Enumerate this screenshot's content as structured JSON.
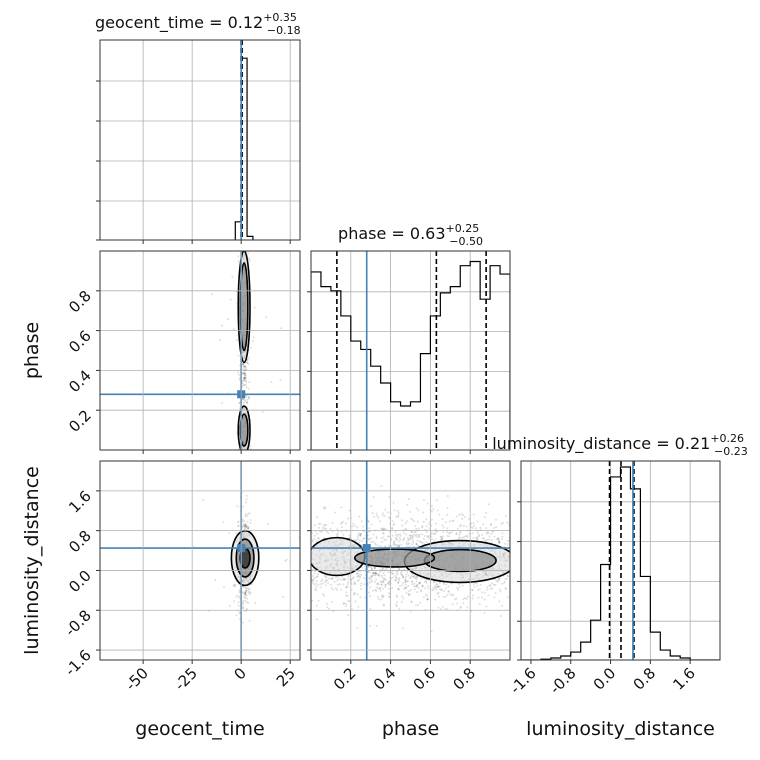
{
  "chart_data": {
    "type": "corner",
    "parameters": [
      "geocent_time",
      "phase",
      "luminosity_distance"
    ],
    "truth": {
      "geocent_time": 0.0,
      "phase": 0.28,
      "luminosity_distance": 0.45
    },
    "truth_color": "#4682b4",
    "axis_labels": {
      "geocent_time": "geocent_time",
      "phase": "phase",
      "luminosity_distance": "luminosity_distance"
    },
    "ranges": {
      "geocent_time": [
        -72,
        30
      ],
      "phase": [
        0.0,
        1.0
      ],
      "luminosity_distance": [
        -1.8,
        2.2
      ]
    },
    "ticks": {
      "geocent_time": [
        "-50",
        "-25",
        "0",
        "25"
      ],
      "phase": [
        "0.2",
        "0.4",
        "0.6",
        "0.8"
      ],
      "luminosity_distance": [
        "-1.6",
        "-0.8",
        "0.0",
        "0.8",
        "1.6"
      ]
    },
    "tick_values": {
      "geocent_time": [
        -50,
        -25,
        0,
        25
      ],
      "phase": [
        0.2,
        0.4,
        0.6,
        0.8
      ],
      "luminosity_distance": [
        -1.6,
        -0.8,
        0.0,
        0.8,
        1.6
      ]
    },
    "titles": [
      {
        "param": "geocent_time",
        "name": "geocent_time",
        "median": "0.12",
        "plus": "+0.35",
        "minus": "−0.18"
      },
      {
        "param": "phase",
        "name": "phase",
        "median": "0.63",
        "plus": "+0.25",
        "minus": "−0.50"
      },
      {
        "param": "luminosity_distance",
        "name": "luminosity_distance",
        "median": "0.21",
        "plus": "+0.26",
        "minus": "−0.23"
      }
    ],
    "quantiles": {
      "geocent_time": [
        -0.06,
        0.12,
        0.47
      ],
      "phase": [
        0.13,
        0.63,
        0.88
      ],
      "luminosity_distance": [
        -0.02,
        0.21,
        0.47
      ]
    },
    "histograms": {
      "geocent_time": {
        "edges": [
          -3,
          0,
          3,
          6
        ],
        "heights": [
          0.1,
          1.0,
          0.02
        ],
        "ymax": 1.1
      },
      "phase": {
        "edges": [
          0.0,
          0.05,
          0.1,
          0.15,
          0.2,
          0.25,
          0.3,
          0.35,
          0.4,
          0.45,
          0.5,
          0.55,
          0.6,
          0.65,
          0.7,
          0.75,
          0.8,
          0.85,
          0.9,
          0.95,
          1.0
        ],
        "heights": [
          0.85,
          0.78,
          0.76,
          0.64,
          0.52,
          0.48,
          0.4,
          0.32,
          0.23,
          0.21,
          0.23,
          0.46,
          0.64,
          0.75,
          0.78,
          0.88,
          0.9,
          0.72,
          0.88,
          0.84
        ],
        "ymax": 0.95
      },
      "luminosity_distance": {
        "edges": [
          -1.8,
          -1.6,
          -1.4,
          -1.2,
          -1.0,
          -0.8,
          -0.6,
          -0.4,
          -0.2,
          0.0,
          0.2,
          0.4,
          0.6,
          0.8,
          1.0,
          1.2,
          1.4,
          1.6,
          1.8,
          2.0,
          2.2
        ],
        "heights": [
          0,
          0,
          0.004,
          0.01,
          0.02,
          0.04,
          0.09,
          0.2,
          0.48,
          0.92,
          0.97,
          0.86,
          0.42,
          0.14,
          0.05,
          0.02,
          0.01,
          0,
          0,
          0
        ],
        "ymax": 1.0
      }
    },
    "contours": {
      "phase_vs_geocent_time": [
        {
          "cx": 1.5,
          "cy": 0.72,
          "rx": 3.0,
          "ry": 0.28,
          "level": "outer"
        },
        {
          "cx": 1.5,
          "cy": 0.72,
          "rx": 1.9,
          "ry": 0.22,
          "level": "mid"
        },
        {
          "cx": 1.5,
          "cy": 0.1,
          "rx": 3.0,
          "ry": 0.12,
          "level": "outer"
        },
        {
          "cx": 1.5,
          "cy": 0.1,
          "rx": 1.9,
          "ry": 0.08,
          "level": "mid"
        }
      ],
      "luminosity_distance_vs_geocent_time": [
        {
          "cx": 2.0,
          "cy": 0.25,
          "rx": 7.0,
          "ry": 0.55,
          "level": "outer"
        },
        {
          "cx": 2.0,
          "cy": 0.25,
          "rx": 4.5,
          "ry": 0.38,
          "level": "mid"
        },
        {
          "cx": 2.0,
          "cy": 0.25,
          "rx": 2.5,
          "ry": 0.2,
          "level": "inner"
        }
      ],
      "luminosity_distance_vs_phase": [
        {
          "cx": 0.13,
          "cy": 0.28,
          "rx": 0.14,
          "ry": 0.38,
          "level": "outer"
        },
        {
          "cx": 0.75,
          "cy": 0.18,
          "rx": 0.28,
          "ry": 0.42,
          "level": "outer"
        },
        {
          "cx": 0.75,
          "cy": 0.2,
          "rx": 0.18,
          "ry": 0.22,
          "level": "mid"
        },
        {
          "cx": 0.42,
          "cy": 0.25,
          "rx": 0.2,
          "ry": 0.18,
          "level": "mid"
        }
      ]
    },
    "grid": true,
    "layout": "lower-triangle 3x3"
  }
}
